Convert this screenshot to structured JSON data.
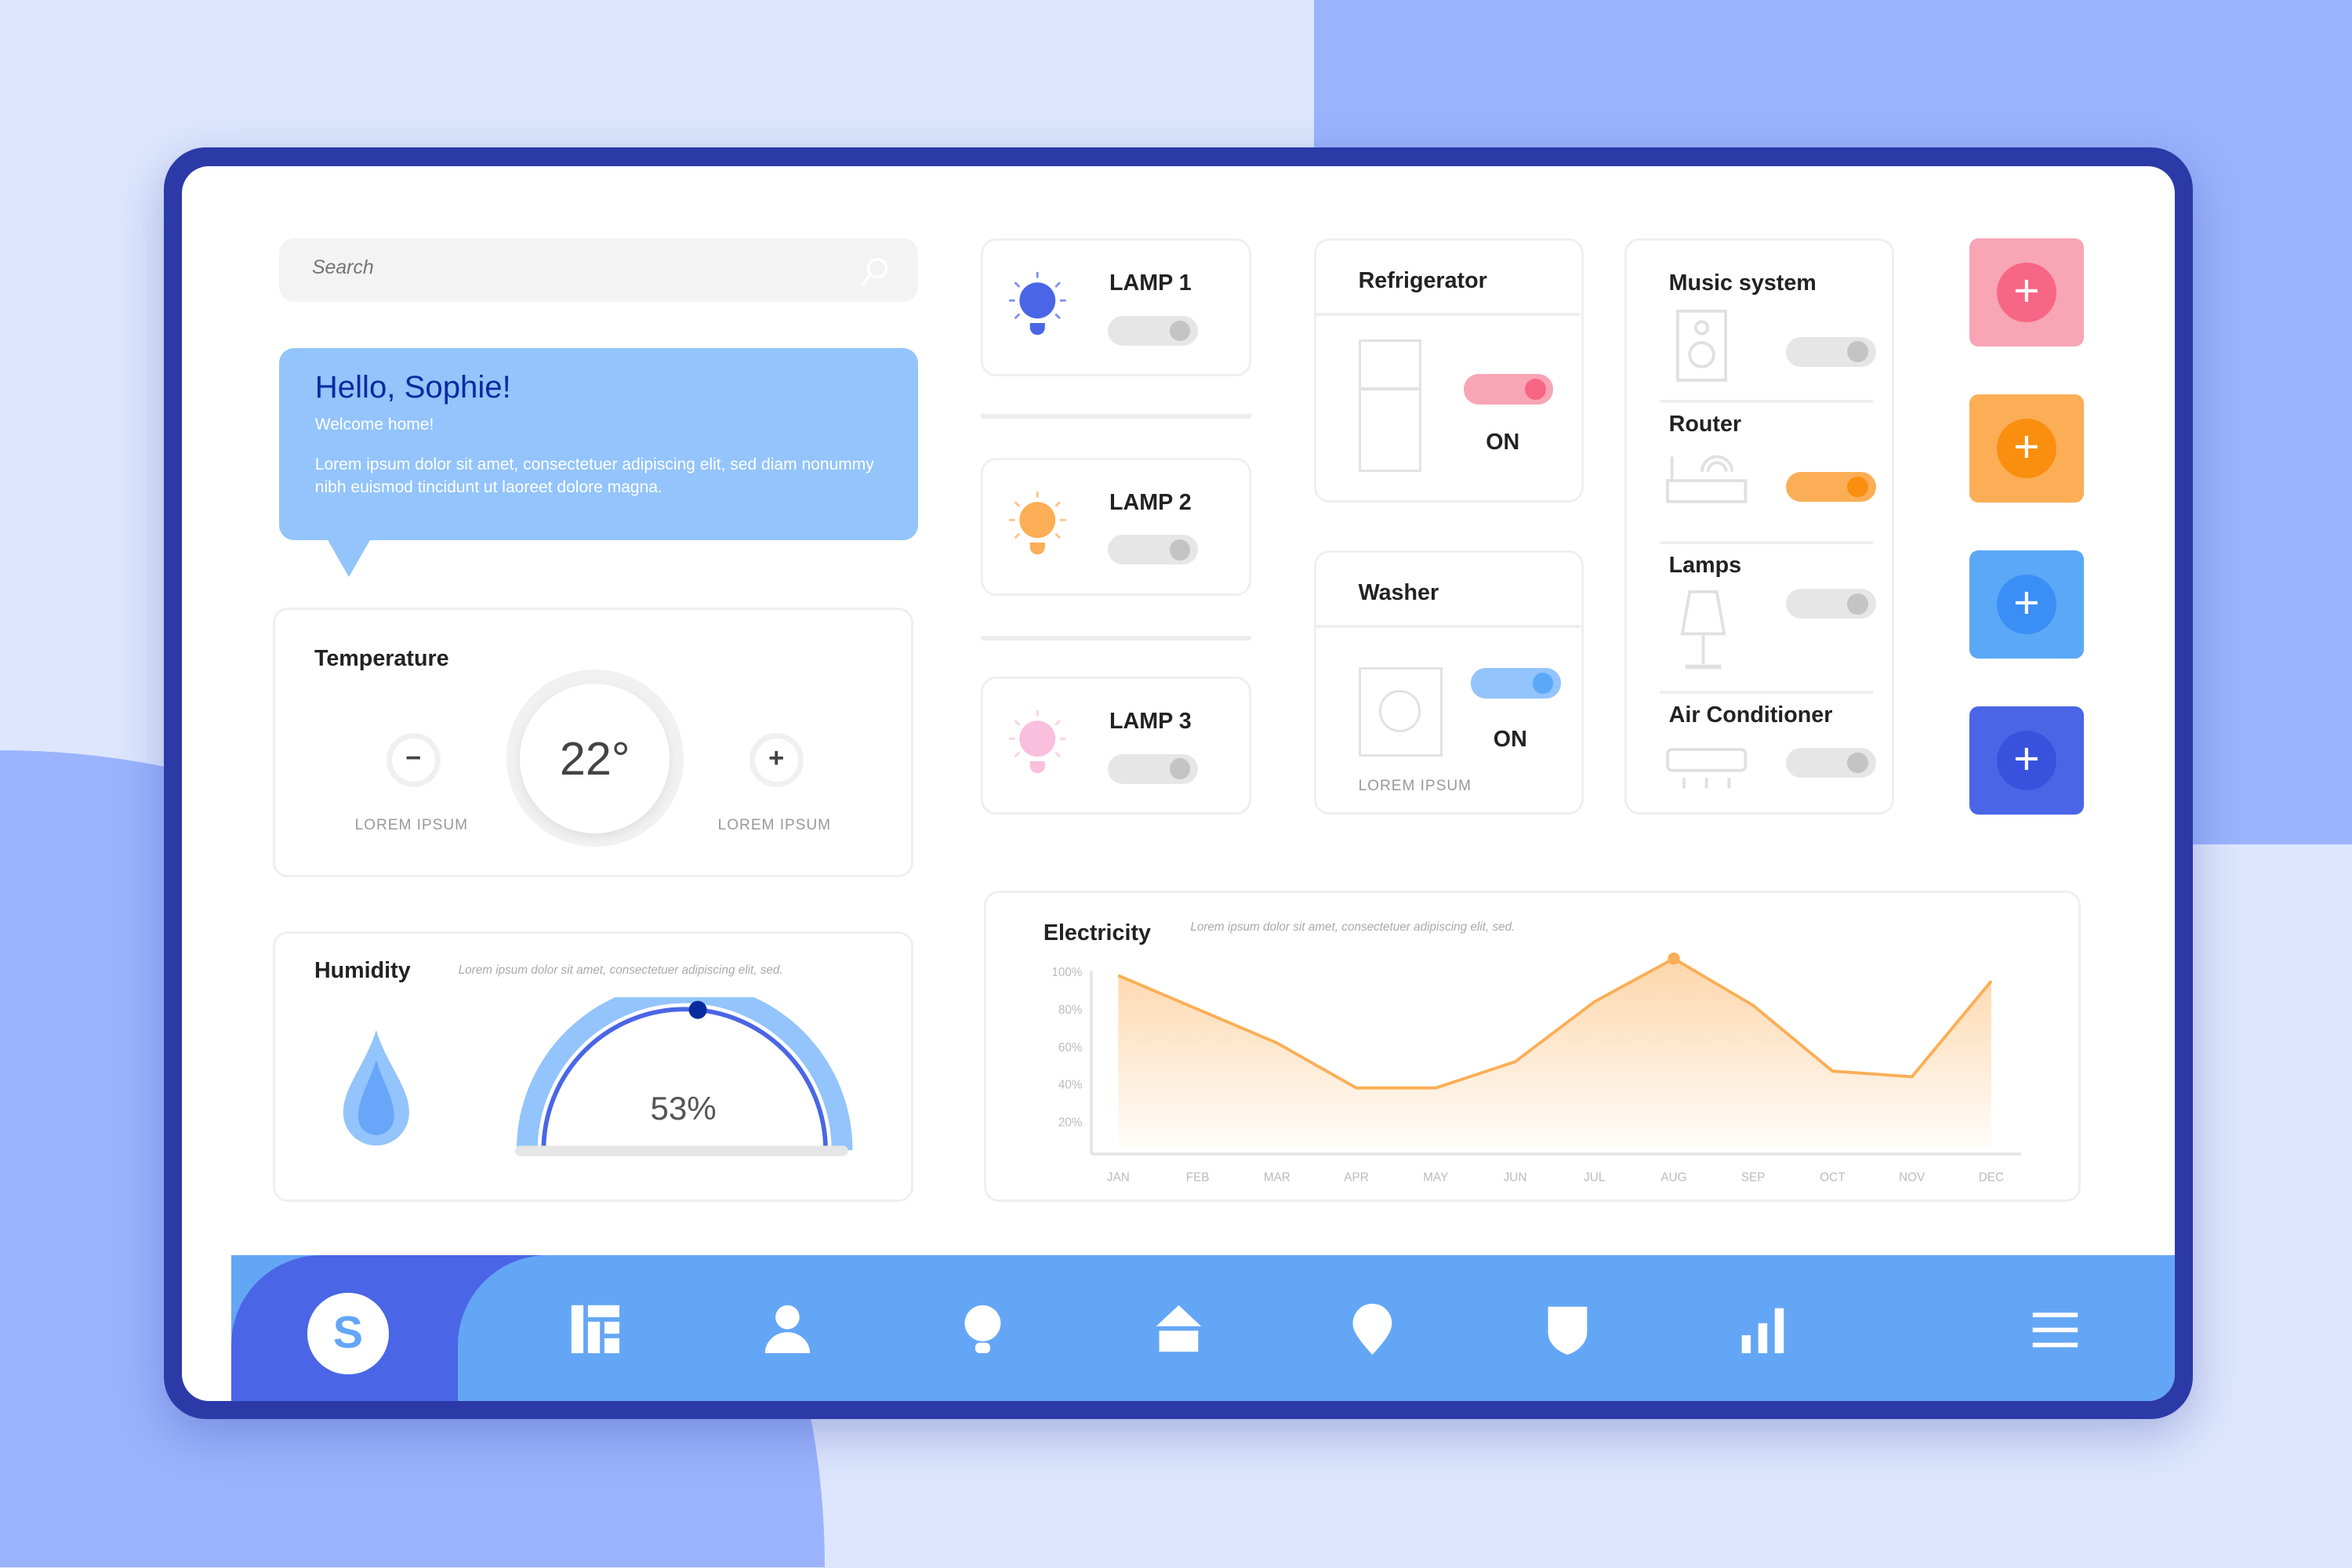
{
  "search": {
    "placeholder": "Search"
  },
  "greeting": {
    "title": "Hello, Sophie!",
    "subtitle": "Welcome home!",
    "body": "Lorem ipsum dolor sit amet, consectetuer adipiscing elit, sed diam nonummy nibh euismod tincidunt ut laoreet dolore magna."
  },
  "temperature": {
    "title": "Temperature",
    "value": "22°",
    "minus_label": "LOREM IPSUM",
    "plus_label": "LOREM IPSUM"
  },
  "humidity": {
    "title": "Humidity",
    "description": "Lorem ipsum dolor sit amet, consectetuer adipiscing elit, sed.",
    "value": "53%",
    "percent": 53
  },
  "lamps": [
    {
      "label": "LAMP 1",
      "color": "#4a66e6",
      "on": false
    },
    {
      "label": "LAMP 2",
      "color": "#fbae55",
      "on": false
    },
    {
      "label": "LAMP 3",
      "color": "#f9bfdc",
      "on": false
    }
  ],
  "refrigerator": {
    "title": "Refrigerator",
    "status": "ON",
    "accent": "#f76684"
  },
  "washer": {
    "title": "Washer",
    "status": "ON",
    "caption": "LOREM IPSUM",
    "accent": "#5ba8f7"
  },
  "devices": [
    {
      "label": "Music system",
      "on": false
    },
    {
      "label": "Router",
      "on": true,
      "accent": "#fa8e0f"
    },
    {
      "label": "Lamps",
      "on": false
    },
    {
      "label": "Air Conditioner",
      "on": false
    }
  ],
  "add_buttons": [
    {
      "color": "#f8a5b5",
      "inner": "#f76684"
    },
    {
      "color": "#fbae55",
      "inner": "#fa8e0f"
    },
    {
      "color": "#5ba8f7",
      "inner": "#3b8ef5"
    },
    {
      "color": "#4a66e6",
      "inner": "#3852dd"
    }
  ],
  "plus_glyph": "+",
  "nav": {
    "avatar_letter": "S",
    "icons": [
      "dashboard-icon",
      "user-icon",
      "bulb-icon",
      "home-icon",
      "location-icon",
      "shield-icon",
      "bar-chart-icon",
      "menu-icon"
    ]
  },
  "chart_data": {
    "type": "area",
    "title": "Electricity",
    "subtitle": "Lorem ipsum dolor sit amet, consectetuer adipiscing elit, sed.",
    "categories": [
      "JAN",
      "FEB",
      "MAR",
      "APR",
      "MAY",
      "JUN",
      "JUL",
      "AUG",
      "SEP",
      "OCT",
      "NOV",
      "DEC"
    ],
    "values": [
      98,
      80,
      62,
      38,
      38,
      52,
      84,
      107,
      82,
      47,
      44,
      95
    ],
    "yticks": [
      "100%",
      "80%",
      "60%",
      "40%",
      "20%"
    ],
    "ytick_values": [
      100,
      80,
      60,
      40,
      20
    ],
    "ylim": [
      6,
      110
    ],
    "highlight": "AUG",
    "color": "#fbae55"
  }
}
